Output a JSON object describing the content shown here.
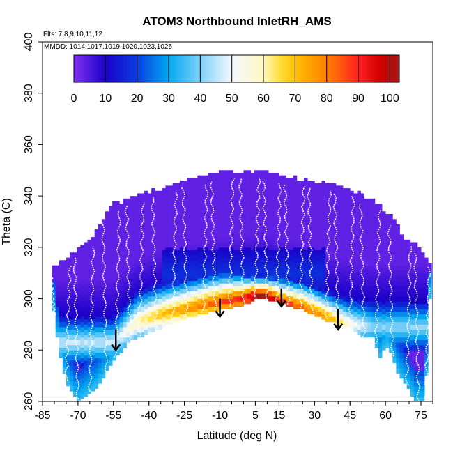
{
  "chart_data": {
    "type": "heatmap",
    "title": "ATOM3 Northbound InletRH_AMS",
    "flights_label": "Flts: 7,8,9,10,11,12",
    "dates_label": "MMDD: 1014,1017,1019,1020,1023,1025",
    "xlabel": "Latitude (deg N)",
    "ylabel": "Theta (C)",
    "xlim": [
      -85,
      80
    ],
    "ylim": [
      260,
      400
    ],
    "x_ticks": [
      -85,
      -70,
      -55,
      -40,
      -25,
      -10,
      5,
      15,
      30,
      45,
      60,
      75
    ],
    "y_ticks": [
      260,
      280,
      300,
      320,
      340,
      360,
      380,
      400
    ],
    "colorbar": {
      "min": 0,
      "max": 103,
      "ticks": [
        0,
        10,
        20,
        30,
        40,
        50,
        60,
        70,
        80,
        90,
        100
      ],
      "stops": [
        {
          "value": 0,
          "color": "#7f2ff0"
        },
        {
          "value": 10,
          "color": "#1a00c8"
        },
        {
          "value": 20,
          "color": "#0a3ce0"
        },
        {
          "value": 30,
          "color": "#00a8f0"
        },
        {
          "value": 40,
          "color": "#7fd0f8"
        },
        {
          "value": 50,
          "color": "#f4f8ff"
        },
        {
          "value": 60,
          "color": "#fff8c0"
        },
        {
          "value": 65,
          "color": "#ffe040"
        },
        {
          "value": 70,
          "color": "#ffc000"
        },
        {
          "value": 80,
          "color": "#ff8000"
        },
        {
          "value": 90,
          "color": "#ff2020"
        },
        {
          "value": 97,
          "color": "#d00000"
        },
        {
          "value": 103,
          "color": "#a01818"
        }
      ]
    },
    "upper_boundary": [
      [
        -81,
        311
      ],
      [
        -78,
        313
      ],
      [
        -75,
        315
      ],
      [
        -70,
        318
      ],
      [
        -65,
        322
      ],
      [
        -60,
        330
      ],
      [
        -55,
        336
      ],
      [
        -45,
        339
      ],
      [
        -35,
        342
      ],
      [
        -25,
        345
      ],
      [
        -15,
        347
      ],
      [
        -5,
        349
      ],
      [
        5,
        349
      ],
      [
        15,
        347
      ],
      [
        30,
        345
      ],
      [
        45,
        342
      ],
      [
        55,
        337
      ],
      [
        62,
        332
      ],
      [
        68,
        323
      ],
      [
        74,
        320
      ],
      [
        78,
        313
      ]
    ],
    "lower_boundary": [
      [
        -81,
        300
      ],
      [
        -78,
        280
      ],
      [
        -75,
        268
      ],
      [
        -70,
        260
      ],
      [
        -62,
        266
      ],
      [
        -55,
        276
      ],
      [
        -48,
        284
      ],
      [
        -40,
        287
      ],
      [
        -30,
        291
      ],
      [
        -20,
        294
      ],
      [
        -10,
        296
      ],
      [
        0,
        298
      ],
      [
        5,
        300
      ],
      [
        10,
        300
      ],
      [
        15,
        299
      ],
      [
        25,
        296
      ],
      [
        35,
        292
      ],
      [
        45,
        289
      ],
      [
        50,
        285
      ],
      [
        55,
        285
      ],
      [
        58,
        277
      ],
      [
        60,
        283
      ],
      [
        62,
        280
      ],
      [
        66,
        270
      ],
      [
        70,
        265
      ],
      [
        73,
        260
      ],
      [
        77,
        260
      ],
      [
        78,
        300
      ]
    ],
    "humid_layer": [
      {
        "lat": -55,
        "center": 283,
        "thickness": 10,
        "value": 35
      },
      {
        "lat": -45,
        "center": 291,
        "thickness": 12,
        "value": 50
      },
      {
        "lat": -35,
        "center": 294,
        "thickness": 12,
        "value": 60
      },
      {
        "lat": -25,
        "center": 296,
        "thickness": 12,
        "value": 66
      },
      {
        "lat": -15,
        "center": 298,
        "thickness": 12,
        "value": 72
      },
      {
        "lat": -8,
        "center": 299,
        "thickness": 12,
        "value": 76
      },
      {
        "lat": 0,
        "center": 300,
        "thickness": 10,
        "value": 82
      },
      {
        "lat": 5,
        "center": 301,
        "thickness": 8,
        "value": 94
      },
      {
        "lat": 10,
        "center": 301,
        "thickness": 8,
        "value": 90
      },
      {
        "lat": 15,
        "center": 299,
        "thickness": 10,
        "value": 80
      },
      {
        "lat": 25,
        "center": 297,
        "thickness": 10,
        "value": 72
      },
      {
        "lat": 35,
        "center": 293,
        "thickness": 10,
        "value": 65
      },
      {
        "lat": 45,
        "center": 290,
        "thickness": 10,
        "value": 45
      },
      {
        "lat": 55,
        "center": 289,
        "thickness": 10,
        "value": 30
      }
    ],
    "arrows": [
      {
        "lat": -54,
        "theta_start": 288,
        "theta_end": 280
      },
      {
        "lat": -10,
        "theta_start": 300,
        "theta_end": 293
      },
      {
        "lat": 16,
        "theta_start": 304,
        "theta_end": 297
      },
      {
        "lat": 40,
        "theta_start": 296,
        "theta_end": 288
      }
    ],
    "profile_longitudes": [
      -80,
      -75,
      -70,
      -65,
      -58,
      -54,
      -48,
      -44,
      -37,
      -30,
      -24,
      -17,
      -12,
      -6,
      0,
      5,
      10,
      14,
      19,
      24,
      29,
      35,
      40,
      45,
      51,
      56,
      63,
      69,
      74,
      77
    ]
  }
}
